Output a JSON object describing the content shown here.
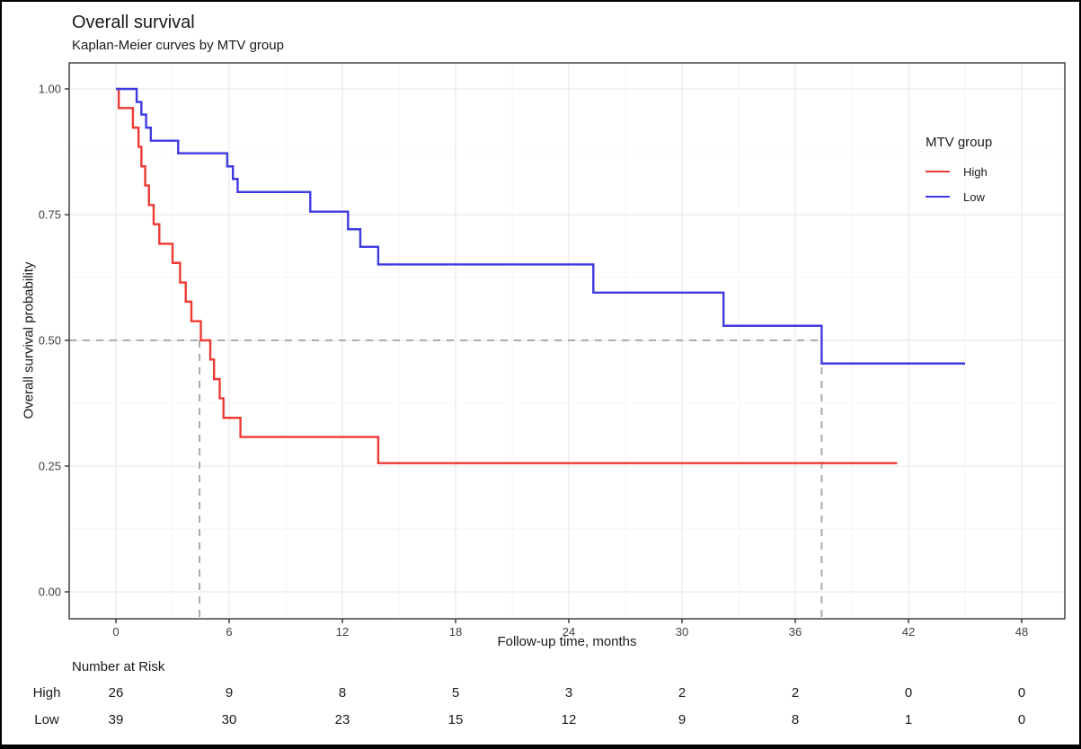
{
  "header": {
    "title": "Overall survival",
    "subtitle": "Kaplan-Meier curves by MTV group"
  },
  "chart_data": {
    "type": "line",
    "subtype": "kaplan-meier-step",
    "title": "Overall survival",
    "subtitle": "Kaplan-Meier curves by MTV group",
    "xlabel": "Follow-up time, months",
    "ylabel": "Overall survival probability",
    "xlim": [
      0,
      48
    ],
    "ylim": [
      0,
      1
    ],
    "grid": true,
    "x_ticks": [
      {
        "v": 0,
        "label": "0"
      },
      {
        "v": 6,
        "label": "6"
      },
      {
        "v": 12,
        "label": "12"
      },
      {
        "v": 18,
        "label": "18"
      },
      {
        "v": 24,
        "label": "24"
      },
      {
        "v": 30,
        "label": "30"
      },
      {
        "v": 36,
        "label": "36"
      },
      {
        "v": 42,
        "label": "42"
      },
      {
        "v": 48,
        "label": "48"
      }
    ],
    "y_ticks": [
      {
        "v": 0,
        "label": "0.00"
      },
      {
        "v": 0.25,
        "label": "0.25"
      },
      {
        "v": 0.5,
        "label": "0.50"
      },
      {
        "v": 0.75,
        "label": "0.75"
      },
      {
        "v": 1,
        "label": "1.00"
      }
    ],
    "x_minor": [
      3,
      9,
      15,
      21,
      27,
      33,
      39,
      45
    ],
    "y_minor": [
      0.125,
      0.375,
      0.625,
      0.875
    ],
    "legend": {
      "title": "MTV group",
      "position": "right",
      "entries": [
        {
          "label": "High",
          "color": "#ee3a34"
        },
        {
          "label": "Low",
          "color": "#3e3ae0"
        }
      ]
    },
    "series": [
      {
        "name": "High",
        "color": "#ee3a34",
        "steps": [
          [
            0,
            1.0
          ],
          [
            0.15,
            0.962
          ],
          [
            0.9,
            0.923
          ],
          [
            1.2,
            0.885
          ],
          [
            1.35,
            0.846
          ],
          [
            1.55,
            0.808
          ],
          [
            1.75,
            0.769
          ],
          [
            2.0,
            0.731
          ],
          [
            2.3,
            0.692
          ],
          [
            3.0,
            0.654
          ],
          [
            3.4,
            0.615
          ],
          [
            3.7,
            0.577
          ],
          [
            4.0,
            0.538
          ],
          [
            4.5,
            0.5
          ],
          [
            5.0,
            0.462
          ],
          [
            5.2,
            0.423
          ],
          [
            5.5,
            0.385
          ],
          [
            5.7,
            0.346
          ],
          [
            6.6,
            0.308
          ],
          [
            13.9,
            0.256
          ]
        ],
        "end_time": 41.4,
        "median_months": 4.43
      },
      {
        "name": "Low",
        "color": "#3e3ae0",
        "steps": [
          [
            0,
            1.0
          ],
          [
            1.1,
            0.974
          ],
          [
            1.35,
            0.949
          ],
          [
            1.6,
            0.923
          ],
          [
            1.85,
            0.897
          ],
          [
            3.3,
            0.872
          ],
          [
            5.9,
            0.846
          ],
          [
            6.2,
            0.821
          ],
          [
            6.45,
            0.795
          ],
          [
            10.3,
            0.756
          ],
          [
            12.3,
            0.721
          ],
          [
            12.95,
            0.686
          ],
          [
            13.9,
            0.651
          ],
          [
            25.3,
            0.595
          ],
          [
            32.2,
            0.529
          ],
          [
            37.4,
            0.454
          ]
        ],
        "end_time": 45.0,
        "median_months": 37.4
      }
    ],
    "reference_lines": {
      "horizontal_y": 0.5,
      "vertical_t": [
        4.43,
        37.4
      ],
      "color": "#ababab"
    }
  },
  "risk_table": {
    "title": "Number at Risk",
    "times": [
      0,
      6,
      12,
      18,
      24,
      30,
      36,
      42,
      48
    ],
    "rows": [
      {
        "label": "High",
        "values": [
          "26",
          "9",
          "8",
          "5",
          "3",
          "2",
          "2",
          "0",
          "0"
        ]
      },
      {
        "label": "Low",
        "values": [
          "39",
          "30",
          "23",
          "15",
          "12",
          "9",
          "8",
          "1",
          "0"
        ]
      }
    ]
  }
}
